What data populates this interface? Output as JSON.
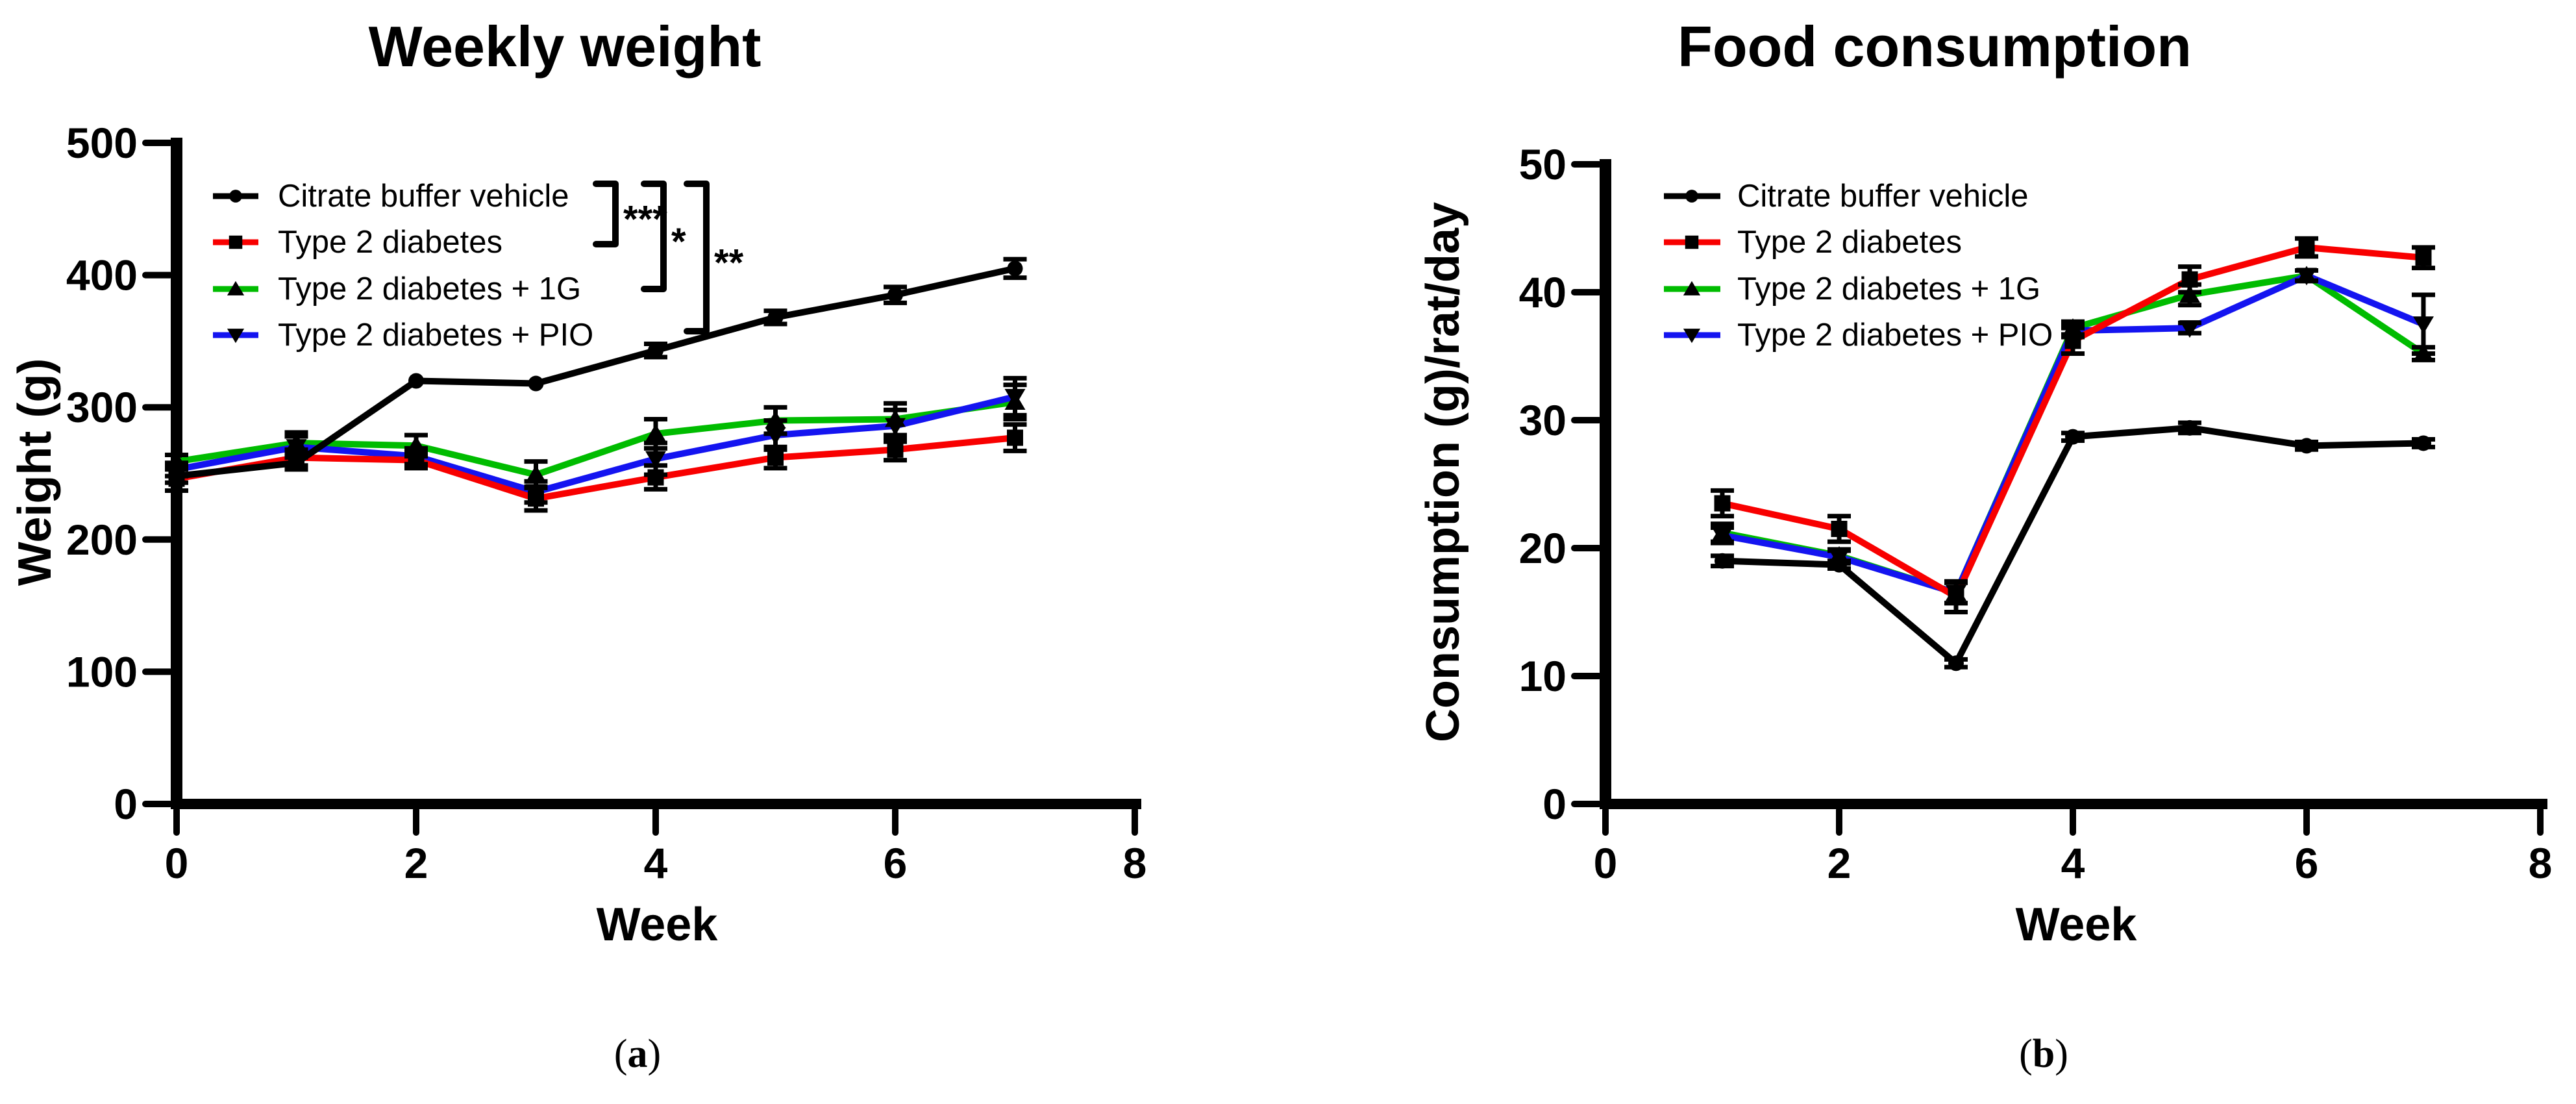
{
  "page": {
    "background": "#ffffff"
  },
  "captions": {
    "a": {
      "open": "(",
      "letter": "a",
      "close": ")"
    },
    "b": {
      "open": "(",
      "letter": "b",
      "close": ")"
    }
  },
  "colors": {
    "control_black": "#000000",
    "diabetes_red": "#F80000",
    "diabetes_1g_green": "#00BC00",
    "diabetes_pio_blue": "#1414F0"
  },
  "chart_data": [
    {
      "id": "weekly-weight",
      "type": "line",
      "title": "Weekly weight",
      "xlabel": "Week",
      "ylabel": "Weight (g)",
      "caption": "(a)",
      "xlim": [
        0,
        8
      ],
      "ylim": [
        0,
        500
      ],
      "xticks": [
        0,
        2,
        4,
        6,
        8
      ],
      "yticks": [
        0,
        100,
        200,
        300,
        400,
        500
      ],
      "grid": false,
      "legend_position": "inside-top-left",
      "x": [
        0,
        1,
        2,
        3,
        4,
        5,
        6,
        7
      ],
      "series": [
        {
          "name": "Citrate buffer vehicle",
          "color": "#000000",
          "marker": "circle",
          "values": [
            248,
            258,
            320,
            318,
            343,
            368,
            385,
            405
          ],
          "errors": [
            5,
            5,
            0,
            0,
            5,
            5,
            6,
            7
          ]
        },
        {
          "name": "Type 2 diabetes",
          "color": "#F80000",
          "marker": "square",
          "values": [
            246,
            262,
            260,
            231,
            247,
            262,
            268,
            277
          ],
          "errors": [
            9,
            6,
            6,
            9,
            9,
            8,
            8,
            10
          ]
        },
        {
          "name": "Type 2 diabetes + 1G",
          "color": "#00BC00",
          "marker": "triangle-up",
          "values": [
            259,
            273,
            271,
            249,
            280,
            290,
            291,
            304
          ],
          "errors": [
            5,
            8,
            8,
            10,
            11,
            10,
            12,
            13
          ]
        },
        {
          "name": "Type 2 diabetes + PIO",
          "color": "#1414F0",
          "marker": "triangle-down",
          "values": [
            253,
            270,
            263,
            236,
            261,
            279,
            286,
            308
          ],
          "errors": [
            5,
            8,
            6,
            8,
            12,
            11,
            12,
            14
          ]
        }
      ],
      "significance": [
        {
          "label": "***",
          "between": [
            "Citrate buffer vehicle",
            "Type 2 diabetes"
          ]
        },
        {
          "label": "*",
          "between": [
            "Citrate buffer vehicle",
            "Type 2 diabetes + 1G"
          ]
        },
        {
          "label": "**",
          "between": [
            "Citrate buffer vehicle",
            "Type 2 diabetes + PIO"
          ]
        }
      ]
    },
    {
      "id": "food-consumption",
      "type": "line",
      "title": "Food consumption",
      "xlabel": "Week",
      "ylabel": "Consumption (g)/rat/day",
      "caption": "(b)",
      "xlim": [
        0,
        8
      ],
      "ylim": [
        0,
        50
      ],
      "xticks": [
        0,
        2,
        4,
        6,
        8
      ],
      "yticks": [
        0,
        10,
        20,
        30,
        40,
        50
      ],
      "grid": false,
      "legend_position": "inside-top-left",
      "x": [
        1,
        2,
        3,
        4,
        5,
        6,
        7
      ],
      "series": [
        {
          "name": "Citrate buffer vehicle",
          "color": "#000000",
          "marker": "circle",
          "values": [
            19,
            18.7,
            11,
            28.7,
            29.4,
            28,
            28.2
          ],
          "errors": [
            0.4,
            0.3,
            0.3,
            0.3,
            0.4,
            0.3,
            0.3
          ]
        },
        {
          "name": "Type 2 diabetes",
          "color": "#F80000",
          "marker": "square",
          "values": [
            23.5,
            21.5,
            16.2,
            36.2,
            41,
            43.5,
            42.7
          ],
          "errors": [
            1.0,
            1.0,
            1.2,
            1.0,
            1.0,
            0.7,
            0.8
          ]
        },
        {
          "name": "Type 2 diabetes + 1G",
          "color": "#00BC00",
          "marker": "triangle-up",
          "values": [
            21.2,
            19.4,
            16.5,
            37.2,
            39.8,
            41.3,
            35.2
          ],
          "errors": [
            0.7,
            0.5,
            0.8,
            0.5,
            0.8,
            0.4,
            0.5
          ]
        },
        {
          "name": "Type 2 diabetes + PIO",
          "color": "#1414F0",
          "marker": "triangle-down",
          "values": [
            21,
            19.3,
            16.5,
            37,
            37.2,
            41.3,
            37.5
          ],
          "errors": [
            0.6,
            0.5,
            0.8,
            0.5,
            0.4,
            0.4,
            2.3
          ]
        }
      ],
      "significance": []
    }
  ]
}
